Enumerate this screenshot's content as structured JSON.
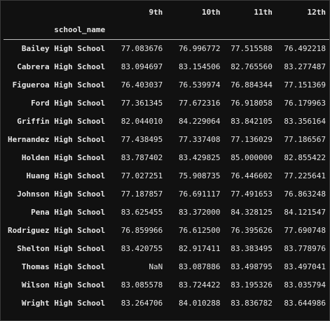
{
  "table": {
    "index_name": "school_name",
    "columns": [
      "9th",
      "10th",
      "11th",
      "12th"
    ],
    "rows": [
      {
        "school": "Bailey High School",
        "values": [
          "77.083676",
          "76.996772",
          "77.515588",
          "76.492218"
        ]
      },
      {
        "school": "Cabrera High School",
        "values": [
          "83.094697",
          "83.154506",
          "82.765560",
          "83.277487"
        ]
      },
      {
        "school": "Figueroa High School",
        "values": [
          "76.403037",
          "76.539974",
          "76.884344",
          "77.151369"
        ]
      },
      {
        "school": "Ford High School",
        "values": [
          "77.361345",
          "77.672316",
          "76.918058",
          "76.179963"
        ]
      },
      {
        "school": "Griffin High School",
        "values": [
          "82.044010",
          "84.229064",
          "83.842105",
          "83.356164"
        ]
      },
      {
        "school": "Hernandez High School",
        "values": [
          "77.438495",
          "77.337408",
          "77.136029",
          "77.186567"
        ]
      },
      {
        "school": "Holden High School",
        "values": [
          "83.787402",
          "83.429825",
          "85.000000",
          "82.855422"
        ]
      },
      {
        "school": "Huang High School",
        "values": [
          "77.027251",
          "75.908735",
          "76.446602",
          "77.225641"
        ]
      },
      {
        "school": "Johnson High School",
        "values": [
          "77.187857",
          "76.691117",
          "77.491653",
          "76.863248"
        ]
      },
      {
        "school": "Pena High School",
        "values": [
          "83.625455",
          "83.372000",
          "84.328125",
          "84.121547"
        ]
      },
      {
        "school": "Rodriguez High School",
        "values": [
          "76.859966",
          "76.612500",
          "76.395626",
          "77.690748"
        ]
      },
      {
        "school": "Shelton High School",
        "values": [
          "83.420755",
          "82.917411",
          "83.383495",
          "83.778976"
        ]
      },
      {
        "school": "Thomas High School",
        "values": [
          "NaN",
          "83.087886",
          "83.498795",
          "83.497041"
        ]
      },
      {
        "school": "Wilson High School",
        "values": [
          "83.085578",
          "83.724422",
          "83.195326",
          "83.035794"
        ]
      },
      {
        "school": "Wright High School",
        "values": [
          "83.264706",
          "84.010288",
          "83.836782",
          "83.644986"
        ]
      }
    ]
  },
  "colors": {
    "background": "#111111",
    "text": "#e6e6e6",
    "header_rule": "#bdbdbd"
  }
}
